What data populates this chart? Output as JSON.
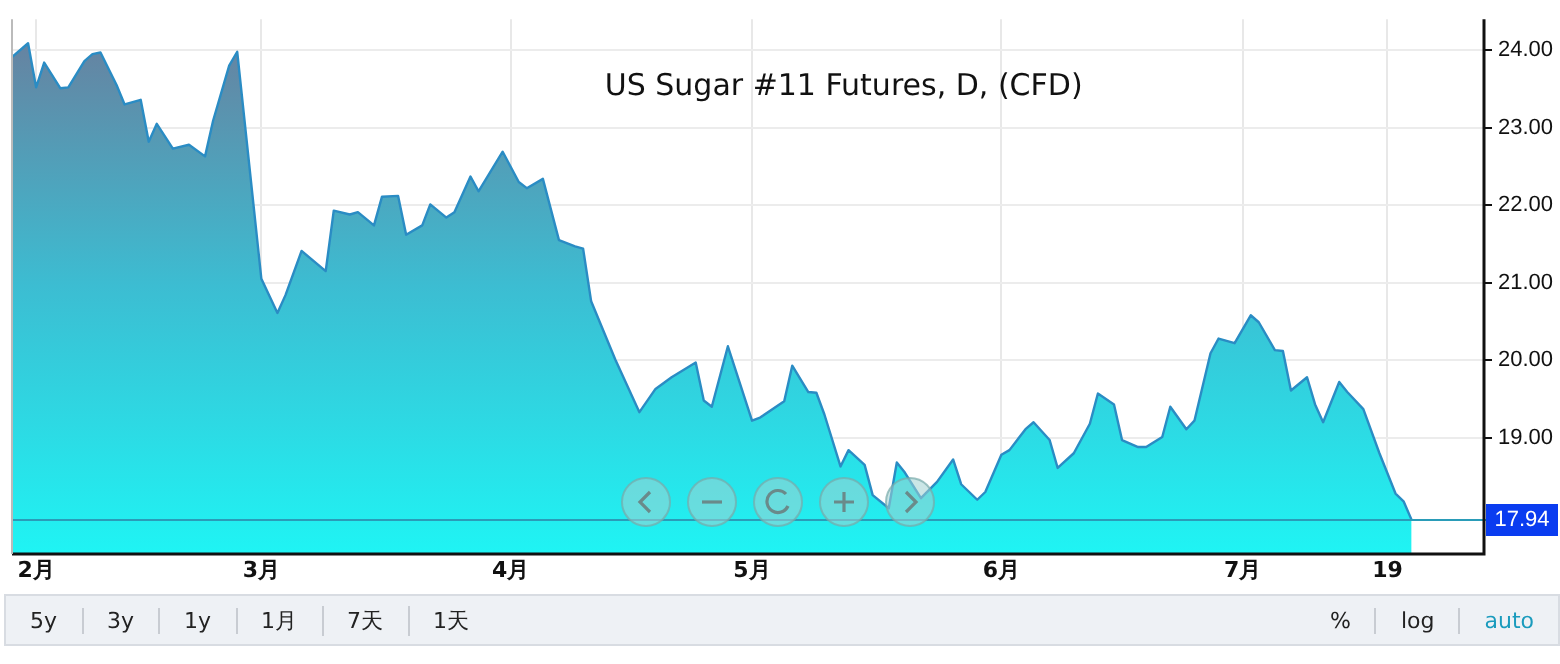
{
  "chart_data": {
    "type": "area",
    "title": "US Sugar #11 Futures, D, (CFD)",
    "x": [
      "--01-29",
      "--01-31",
      "--02-01",
      "--02-02",
      "--02-04",
      "--02-05",
      "--02-07",
      "--02-08",
      "--02-09",
      "--02-11",
      "--02-12",
      "--02-14",
      "--02-15",
      "--02-16",
      "--02-18",
      "--02-20",
      "--02-22",
      "--02-23",
      "--02-25",
      "--02-26",
      "--03-01",
      "--03-03",
      "--03-04",
      "--03-06",
      "--03-09",
      "--03-10",
      "--03-12",
      "--03-13",
      "--03-15",
      "--03-16",
      "--03-18",
      "--03-19",
      "--03-21",
      "--03-22",
      "--03-24",
      "--03-25",
      "--03-27",
      "--03-28",
      "--03-31",
      "--04-02",
      "--04-03",
      "--04-05",
      "--04-07",
      "--04-09",
      "--04-10",
      "--04-11",
      "--04-14",
      "--04-17",
      "--04-19",
      "--04-21",
      "--04-24",
      "--04-25",
      "--04-26",
      "--04-28",
      "--05-01",
      "--05-02",
      "--05-05",
      "--05-06",
      "--05-08",
      "--05-09",
      "--05-10",
      "--05-12",
      "--05-13",
      "--05-15",
      "--05-16",
      "--05-18",
      "--05-19",
      "--05-20",
      "--05-22",
      "--05-24",
      "--05-26",
      "--05-27",
      "--05-29",
      "--05-30",
      "--06-01",
      "--06-02",
      "--06-04",
      "--06-05",
      "--06-07",
      "--06-08",
      "--06-10",
      "--06-12",
      "--06-13",
      "--06-15",
      "--06-16",
      "--06-18",
      "--06-19",
      "--06-21",
      "--06-22",
      "--06-24",
      "--06-25",
      "--06-27",
      "--06-28",
      "--06-30",
      "--07-02",
      "--07-03",
      "--07-05",
      "--07-06",
      "--07-07",
      "--07-09",
      "--07-10",
      "--07-11",
      "--07-13",
      "--07-14",
      "--07-16",
      "--07-18",
      "--07-20",
      "--07-21",
      "--07-22"
    ],
    "series": [
      {
        "color": "#2a8cc4",
        "values": [
          23.91,
          24.09,
          23.52,
          23.84,
          23.51,
          23.52,
          23.86,
          23.95,
          23.97,
          23.55,
          23.3,
          23.36,
          22.82,
          23.05,
          22.73,
          22.78,
          22.63,
          23.09,
          23.8,
          23.98,
          21.05,
          20.61,
          20.84,
          21.41,
          21.15,
          21.93,
          21.88,
          21.91,
          21.74,
          22.11,
          22.12,
          21.62,
          21.74,
          22.01,
          21.84,
          21.91,
          22.37,
          22.18,
          22.69,
          22.3,
          22.22,
          22.34,
          21.55,
          21.47,
          21.44,
          20.76,
          20.01,
          19.33,
          19.63,
          19.78,
          19.97,
          19.48,
          19.4,
          20.18,
          19.22,
          19.26,
          19.47,
          19.93,
          19.59,
          19.58,
          19.3,
          18.63,
          18.84,
          18.65,
          18.26,
          18.09,
          18.68,
          18.55,
          18.22,
          18.43,
          18.72,
          18.4,
          18.2,
          18.3,
          18.78,
          18.84,
          19.11,
          19.2,
          18.97,
          18.61,
          18.8,
          19.18,
          19.57,
          19.43,
          18.97,
          18.88,
          18.88,
          19.01,
          19.4,
          19.11,
          19.22,
          20.09,
          20.28,
          20.22,
          20.58,
          20.49,
          20.13,
          20.12,
          19.61,
          19.78,
          19.43,
          19.2,
          19.72,
          19.59,
          19.37,
          18.8,
          18.28,
          18.18,
          17.94
        ]
      }
    ],
    "xlim": [
      "--01-29",
      "--07-31"
    ],
    "xticks": [
      {
        "value": "--02-01",
        "label": "2月"
      },
      {
        "value": "--03-01",
        "label": "3月"
      },
      {
        "value": "--04-01",
        "label": "4月"
      },
      {
        "value": "--05-01",
        "label": "5月"
      },
      {
        "value": "--06-01",
        "label": "6月"
      },
      {
        "value": "--07-01",
        "label": "7月"
      },
      {
        "value": "--07-19",
        "label": "19"
      }
    ],
    "ylim": [
      17.5,
      24.4
    ],
    "yticks": [
      {
        "value": 19,
        "label": "19.00"
      },
      {
        "value": 20,
        "label": "20.00"
      },
      {
        "value": 21,
        "label": "21.00"
      },
      {
        "value": 22,
        "label": "22.00"
      },
      {
        "value": 23,
        "label": "23.00"
      },
      {
        "value": 24,
        "label": "24.00"
      }
    ],
    "grid": true,
    "ref_lines": [
      {
        "axis": "y",
        "value": 17.94,
        "label": "17.94",
        "color": "#2a9cb8"
      }
    ],
    "annotations": [
      "5y",
      "3y",
      "1y",
      "1月",
      "7天",
      "1天",
      "%",
      "log",
      "auto"
    ]
  }
}
